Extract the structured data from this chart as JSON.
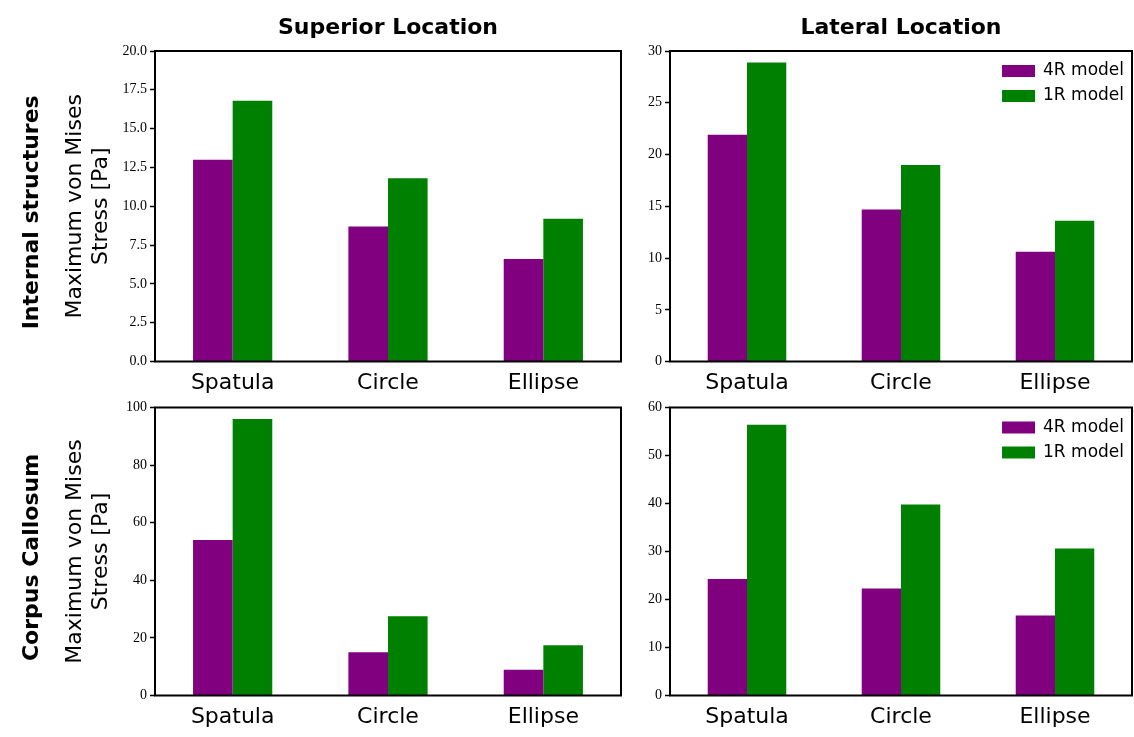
{
  "chart_data": [
    {
      "type": "bar",
      "title": "Superior Location",
      "ylabel": "Maximum von Mises Stress [Pa]",
      "annotations": [
        "Internal structures"
      ],
      "categories": [
        "Spatula",
        "Circle",
        "Ellipse"
      ],
      "series": [
        {
          "color": "#800080",
          "values": [
            13.0,
            8.7,
            6.6
          ]
        },
        {
          "color": "#008000",
          "values": [
            16.8,
            11.8,
            9.2
          ]
        }
      ],
      "ylim": [
        0,
        20
      ],
      "yticks": [
        {
          "value": 0,
          "label": "0.0"
        },
        {
          "value": 2.5,
          "label": "2.5"
        },
        {
          "value": 5,
          "label": "5.0"
        },
        {
          "value": 7.5,
          "label": "7.5"
        },
        {
          "value": 10,
          "label": "10.0"
        },
        {
          "value": 12.5,
          "label": "12.5"
        },
        {
          "value": 15,
          "label": "15.0"
        },
        {
          "value": 17.5,
          "label": "17.5"
        },
        {
          "value": 20,
          "label": "20.0"
        }
      ],
      "grid": false,
      "legend": false
    },
    {
      "type": "bar",
      "title": "Lateral Location",
      "categories": [
        "Spatula",
        "Circle",
        "Ellipse"
      ],
      "series": [
        {
          "name": "4R model",
          "color": "#800080",
          "values": [
            21.9,
            14.7,
            10.6
          ]
        },
        {
          "name": "1R model",
          "color": "#008000",
          "values": [
            28.9,
            19.0,
            13.6
          ]
        }
      ],
      "ylim": [
        0,
        30
      ],
      "yticks": [
        0,
        5,
        10,
        15,
        20,
        25,
        30
      ],
      "grid": false,
      "legend": "top right"
    },
    {
      "type": "bar",
      "ylabel": "Maximum von Mises Stress [Pa]",
      "annotations": [
        "Corpus Callosum"
      ],
      "categories": [
        "Spatula",
        "Circle",
        "Ellipse"
      ],
      "series": [
        {
          "color": "#800080",
          "values": [
            54,
            15,
            9
          ]
        },
        {
          "color": "#008000",
          "values": [
            96,
            27.5,
            17.5
          ]
        }
      ],
      "ylim": [
        0,
        100
      ],
      "yticks": [
        0,
        20,
        40,
        60,
        80,
        100
      ],
      "grid": false,
      "legend": false
    },
    {
      "type": "bar",
      "categories": [
        "Spatula",
        "Circle",
        "Ellipse"
      ],
      "series": [
        {
          "name": "4R model",
          "color": "#800080",
          "values": [
            24.3,
            22.3,
            16.7
          ]
        },
        {
          "name": "1R model",
          "color": "#008000",
          "values": [
            56.4,
            39.8,
            30.6
          ]
        }
      ],
      "ylim": [
        0,
        60
      ],
      "yticks": [
        0,
        10,
        20,
        30,
        40,
        50,
        60
      ],
      "grid": false,
      "legend": "top right"
    }
  ]
}
